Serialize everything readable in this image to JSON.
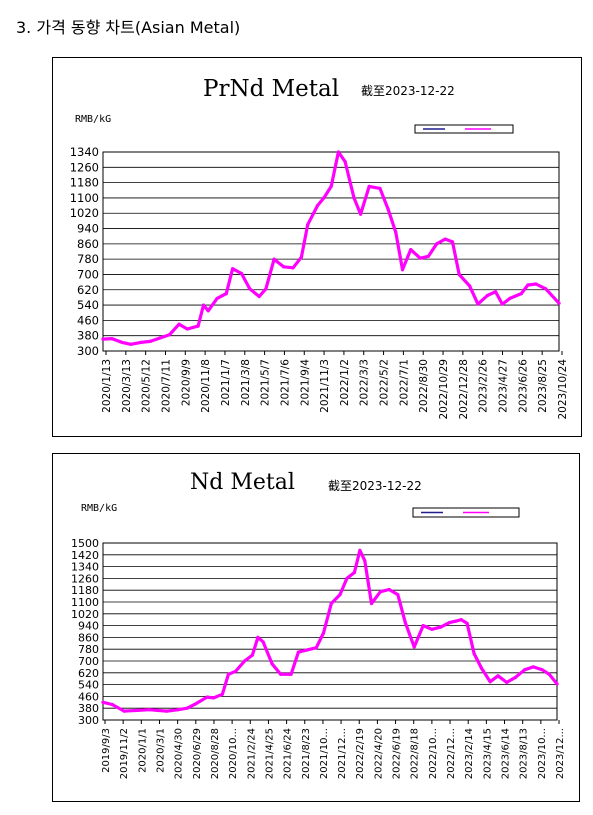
{
  "heading": "3. 가격 동향 차트(Asian Metal)",
  "chart_data": [
    {
      "type": "line",
      "title": "PrNd Metal",
      "subtitle": "截至2023-12-22",
      "ylabel": "RMB/kG",
      "ylim": [
        300,
        1340
      ],
      "yticks": [
        300,
        380,
        460,
        540,
        620,
        700,
        780,
        860,
        940,
        1020,
        1100,
        1180,
        1260,
        1340
      ],
      "xlim": [
        "2020-01-13",
        "2023-12-22"
      ],
      "xticks": [
        "2020/1/13",
        "2020/3/13",
        "2020/5/12",
        "2020/7/11",
        "2020/9/9",
        "2020/11/8",
        "2021/1/7",
        "2021/3/8",
        "2021/5/7",
        "2021/7/6",
        "2021/9/4",
        "2021/11/3",
        "2022/1/2",
        "2022/3/3",
        "2022/5/2",
        "2022/7/1",
        "2022/8/30",
        "2022/10/29",
        "2022/12/28",
        "2023/2/26",
        "2023/4/27",
        "2023/6/26",
        "2023/8/25",
        "2023/10/24"
      ],
      "grid": true,
      "legend": "top-right",
      "series": [
        {
          "color": "#1f1f8f",
          "points": [
            [
              "2020-01-13",
              362
            ]
          ]
        },
        {
          "color": "#ff00ff",
          "points": [
            [
              "2020-01-13",
              362
            ],
            [
              "2020-02-10",
              365
            ],
            [
              "2020-03-13",
              345
            ],
            [
              "2020-04-10",
              335
            ],
            [
              "2020-05-12",
              345
            ],
            [
              "2020-06-10",
              350
            ],
            [
              "2020-07-11",
              368
            ],
            [
              "2020-08-10",
              385
            ],
            [
              "2020-09-09",
              440
            ],
            [
              "2020-10-05",
              415
            ],
            [
              "2020-11-08",
              430
            ],
            [
              "2020-11-25",
              540
            ],
            [
              "2020-12-10",
              510
            ],
            [
              "2021-01-07",
              575
            ],
            [
              "2021-02-05",
              600
            ],
            [
              "2021-02-25",
              730
            ],
            [
              "2021-03-25",
              705
            ],
            [
              "2021-04-20",
              625
            ],
            [
              "2021-05-20",
              585
            ],
            [
              "2021-06-10",
              625
            ],
            [
              "2021-07-06",
              780
            ],
            [
              "2021-08-05",
              740
            ],
            [
              "2021-09-04",
              735
            ],
            [
              "2021-09-30",
              790
            ],
            [
              "2021-10-20",
              960
            ],
            [
              "2021-11-20",
              1060
            ],
            [
              "2021-12-10",
              1100
            ],
            [
              "2022-01-02",
              1160
            ],
            [
              "2022-01-25",
              1340
            ],
            [
              "2022-02-15",
              1290
            ],
            [
              "2022-03-15",
              1100
            ],
            [
              "2022-04-05",
              1015
            ],
            [
              "2022-05-02",
              1160
            ],
            [
              "2022-06-05",
              1150
            ],
            [
              "2022-07-01",
              1040
            ],
            [
              "2022-07-25",
              920
            ],
            [
              "2022-08-15",
              725
            ],
            [
              "2022-09-10",
              830
            ],
            [
              "2022-10-10",
              785
            ],
            [
              "2022-11-05",
              795
            ],
            [
              "2022-12-01",
              860
            ],
            [
              "2022-12-28",
              885
            ],
            [
              "2023-01-20",
              870
            ],
            [
              "2023-02-10",
              700
            ],
            [
              "2023-03-15",
              640
            ],
            [
              "2023-04-10",
              545
            ],
            [
              "2023-05-10",
              590
            ],
            [
              "2023-06-05",
              610
            ],
            [
              "2023-06-26",
              545
            ],
            [
              "2023-07-20",
              575
            ],
            [
              "2023-08-25",
              600
            ],
            [
              "2023-09-15",
              645
            ],
            [
              "2023-10-10",
              650
            ],
            [
              "2023-11-10",
              625
            ],
            [
              "2023-12-22",
              550
            ]
          ]
        }
      ]
    },
    {
      "type": "line",
      "title": "Nd Metal",
      "subtitle": "截至2023-12-22",
      "ylabel": "RMB/kG",
      "ylim": [
        300,
        1500
      ],
      "yticks": [
        300,
        380,
        460,
        540,
        620,
        700,
        780,
        860,
        940,
        1020,
        1100,
        1180,
        1260,
        1340,
        1420,
        1500
      ],
      "xlim": [
        "2019-09-03",
        "2023-12-22"
      ],
      "xticks": [
        "2019/9/3",
        "2019/11/2",
        "2020/1/1",
        "2020/3/1",
        "2020/4/30",
        "2020/6/29",
        "2020/8/28",
        "2020/10...",
        "2021/2/24",
        "2021/4/25",
        "2021/6/24",
        "2021/8/23",
        "2021/10...",
        "2021/12...",
        "2022/2/19",
        "2022/4/20",
        "2022/6/19",
        "2022/8/18",
        "2022/10...",
        "2022/12...",
        "2023/2/14",
        "2023/4/15",
        "2023/6/14",
        "2023/8/13",
        "2023/10...",
        "2023/12..."
      ],
      "grid": true,
      "legend": "top-right",
      "series": [
        {
          "color": "#1f1f8f",
          "points": [
            [
              "2019-09-03",
              420
            ]
          ]
        },
        {
          "color": "#ff00ff",
          "points": [
            [
              "2019-09-03",
              420
            ],
            [
              "2019-10-05",
              405
            ],
            [
              "2019-11-15",
              360
            ],
            [
              "2020-01-01",
              365
            ],
            [
              "2020-02-10",
              370
            ],
            [
              "2020-03-10",
              365
            ],
            [
              "2020-04-10",
              360
            ],
            [
              "2020-05-20",
              370
            ],
            [
              "2020-06-20",
              380
            ],
            [
              "2020-07-20",
              410
            ],
            [
              "2020-08-28",
              455
            ],
            [
              "2020-09-20",
              450
            ],
            [
              "2020-10-20",
              475
            ],
            [
              "2020-11-10",
              610
            ],
            [
              "2020-12-05",
              630
            ],
            [
              "2021-01-05",
              700
            ],
            [
              "2021-02-01",
              740
            ],
            [
              "2021-02-20",
              860
            ],
            [
              "2021-03-10",
              830
            ],
            [
              "2021-04-10",
              680
            ],
            [
              "2021-05-10",
              610
            ],
            [
              "2021-06-15",
              610
            ],
            [
              "2021-07-10",
              760
            ],
            [
              "2021-08-10",
              775
            ],
            [
              "2021-09-10",
              790
            ],
            [
              "2021-10-05",
              890
            ],
            [
              "2021-11-01",
              1090
            ],
            [
              "2021-12-01",
              1150
            ],
            [
              "2021-12-25",
              1260
            ],
            [
              "2022-01-20",
              1300
            ],
            [
              "2022-02-08",
              1450
            ],
            [
              "2022-02-25",
              1380
            ],
            [
              "2022-03-20",
              1090
            ],
            [
              "2022-04-20",
              1170
            ],
            [
              "2022-05-20",
              1185
            ],
            [
              "2022-06-19",
              1150
            ],
            [
              "2022-07-15",
              960
            ],
            [
              "2022-08-15",
              795
            ],
            [
              "2022-09-15",
              940
            ],
            [
              "2022-10-15",
              915
            ],
            [
              "2022-11-15",
              930
            ],
            [
              "2022-12-15",
              960
            ],
            [
              "2023-01-05",
              970
            ],
            [
              "2023-01-25",
              980
            ],
            [
              "2023-02-14",
              955
            ],
            [
              "2023-03-10",
              750
            ],
            [
              "2023-04-05",
              650
            ],
            [
              "2023-05-05",
              560
            ],
            [
              "2023-06-01",
              600
            ],
            [
              "2023-07-01",
              555
            ],
            [
              "2023-08-01",
              590
            ],
            [
              "2023-09-01",
              640
            ],
            [
              "2023-10-01",
              660
            ],
            [
              "2023-11-01",
              640
            ],
            [
              "2023-11-25",
              610
            ],
            [
              "2023-12-22",
              545
            ]
          ]
        }
      ]
    }
  ]
}
